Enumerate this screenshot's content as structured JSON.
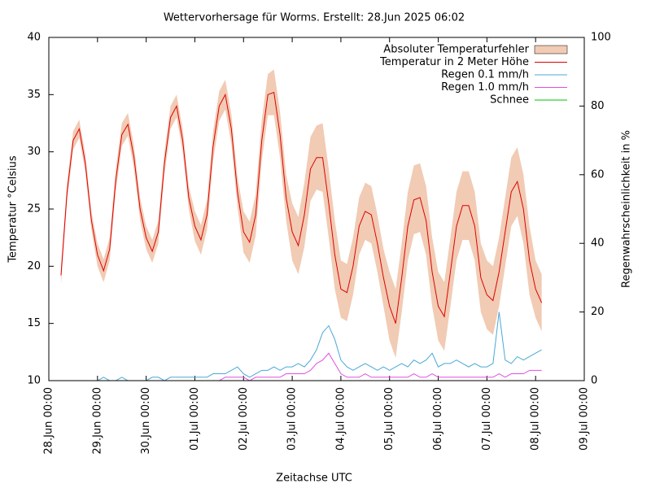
{
  "chart_data": {
    "type": "line",
    "title": "Wettervorhersage für Worms. Erstellt: 28.Jun 2025 06:02",
    "xlabel": "Zeitachse UTC",
    "ylabel": "Temperatur °Celsius",
    "y2label": "Regenwahrscheinlichkeit in %",
    "ylim": [
      10,
      40
    ],
    "yticks": [
      10,
      15,
      20,
      25,
      30,
      35,
      40
    ],
    "y2lim": [
      0,
      100
    ],
    "y2ticks": [
      0,
      20,
      40,
      60,
      80,
      100
    ],
    "xlim": [
      "28.Jun 00:00",
      "09.Jul 00:00"
    ],
    "xticks": [
      "28.Jun 00:00",
      "29.Jun 00:00",
      "30.Jun 00:00",
      "01.Jul 00:00",
      "02.Jul 00:00",
      "03.Jul 00:00",
      "04.Jul 00:00",
      "05.Jul 00:00",
      "06.Jul 00:00",
      "07.Jul 00:00",
      "08.Jul 00:00",
      "09.Jul 00:00"
    ],
    "legend": "top-right",
    "x": [
      "28.Jun 06:00",
      "28.Jun 09:00",
      "28.Jun 12:00",
      "28.Jun 15:00",
      "28.Jun 18:00",
      "28.Jun 21:00",
      "29.Jun 00:00",
      "29.Jun 03:00",
      "29.Jun 06:00",
      "29.Jun 09:00",
      "29.Jun 12:00",
      "29.Jun 15:00",
      "29.Jun 18:00",
      "29.Jun 21:00",
      "30.Jun 00:00",
      "30.Jun 03:00",
      "30.Jun 06:00",
      "30.Jun 09:00",
      "30.Jun 12:00",
      "30.Jun 15:00",
      "30.Jun 18:00",
      "30.Jun 21:00",
      "01.Jul 00:00",
      "01.Jul 03:00",
      "01.Jul 06:00",
      "01.Jul 09:00",
      "01.Jul 12:00",
      "01.Jul 15:00",
      "01.Jul 18:00",
      "01.Jul 21:00",
      "02.Jul 00:00",
      "02.Jul 03:00",
      "02.Jul 06:00",
      "02.Jul 09:00",
      "02.Jul 12:00",
      "02.Jul 15:00",
      "02.Jul 18:00",
      "02.Jul 21:00",
      "03.Jul 00:00",
      "03.Jul 03:00",
      "03.Jul 06:00",
      "03.Jul 09:00",
      "03.Jul 12:00",
      "03.Jul 15:00",
      "03.Jul 18:00",
      "03.Jul 21:00",
      "04.Jul 00:00",
      "04.Jul 03:00",
      "04.Jul 06:00",
      "04.Jul 09:00",
      "04.Jul 12:00",
      "04.Jul 15:00",
      "04.Jul 18:00",
      "04.Jul 21:00",
      "05.Jul 00:00",
      "05.Jul 03:00",
      "05.Jul 06:00",
      "05.Jul 09:00",
      "05.Jul 12:00",
      "05.Jul 15:00",
      "05.Jul 18:00",
      "05.Jul 21:00",
      "06.Jul 00:00",
      "06.Jul 03:00",
      "06.Jul 06:00",
      "06.Jul 09:00",
      "06.Jul 12:00",
      "06.Jul 15:00",
      "06.Jul 18:00",
      "06.Jul 21:00",
      "07.Jul 00:00",
      "07.Jul 03:00",
      "07.Jul 06:00",
      "07.Jul 09:00",
      "07.Jul 12:00",
      "07.Jul 15:00",
      "07.Jul 18:00",
      "07.Jul 21:00",
      "08.Jul 00:00",
      "08.Jul 03:00"
    ],
    "series": [
      {
        "name": "Absoluter Temperaturfehler",
        "color": "#f1cbb4",
        "errors": [
          0.8,
          0.8,
          0.8,
          0.8,
          0.8,
          0.8,
          1,
          1,
          1,
          1,
          1,
          1,
          1,
          1,
          1,
          1,
          1,
          1,
          1,
          1,
          1,
          1,
          1.3,
          1.3,
          1.3,
          1.3,
          1.3,
          1.3,
          1.3,
          1.3,
          1.8,
          1.8,
          1.8,
          1.8,
          1.8,
          2,
          2,
          2,
          2.5,
          2.5,
          2.8,
          2.8,
          2.8,
          3,
          3,
          3,
          2.5,
          2.5,
          2.5,
          2.5,
          2.5,
          2.5,
          2.5,
          2.5,
          3,
          3,
          3,
          3,
          3,
          3,
          3,
          3,
          3,
          3,
          3,
          3,
          3,
          3,
          3,
          3,
          3,
          3,
          3,
          3,
          3,
          3,
          3,
          3,
          2.5,
          2.5
        ]
      },
      {
        "name": "Temperatur in 2 Meter Höhe",
        "color": "#e00000",
        "values": [
          19.2,
          26.5,
          31.0,
          32.0,
          29.0,
          24.0,
          21.0,
          19.6,
          21.5,
          27.5,
          31.5,
          32.4,
          29.5,
          25.0,
          22.5,
          21.3,
          23.0,
          29.0,
          33.0,
          34.0,
          31.0,
          26.0,
          23.5,
          22.3,
          24.5,
          30.5,
          34.0,
          35.0,
          32.0,
          26.5,
          23.0,
          22.1,
          24.5,
          31.0,
          35.0,
          35.2,
          31.5,
          26.0,
          23.0,
          21.8,
          24.5,
          28.5,
          29.5,
          29.5,
          25.5,
          21.0,
          18.0,
          17.7,
          20.0,
          23.5,
          24.8,
          24.5,
          22.0,
          19.0,
          16.5,
          15.0,
          19.0,
          23.5,
          25.8,
          26.0,
          24.0,
          19.5,
          16.5,
          15.6,
          19.5,
          23.5,
          25.3,
          25.3,
          23.5,
          19.0,
          17.5,
          17.0,
          19.5,
          23.0,
          26.5,
          27.4,
          25.0,
          20.5,
          18.0,
          16.8
        ]
      },
      {
        "name": "Regen 0.1 mm/h",
        "color": "#4aa8d8",
        "axis": "y2",
        "values": [
          0,
          0,
          0,
          0,
          0,
          0,
          0,
          1,
          0,
          0,
          1,
          0,
          0,
          0,
          0,
          1,
          1,
          0,
          1,
          1,
          1,
          1,
          1,
          1,
          1,
          2,
          2,
          2,
          3,
          4,
          2,
          1,
          2,
          3,
          3,
          4,
          3,
          4,
          4,
          5,
          4,
          6,
          9,
          14,
          16,
          12,
          6,
          4,
          3,
          4,
          5,
          4,
          3,
          4,
          3,
          4,
          5,
          4,
          6,
          5,
          6,
          8,
          4,
          5,
          5,
          6,
          5,
          4,
          5,
          4,
          4,
          5,
          20,
          6,
          5,
          7,
          6,
          7,
          8,
          9
        ]
      },
      {
        "name": "Regen 1.0 mm/h",
        "color": "#e050e0",
        "axis": "y2",
        "values": [
          0,
          0,
          0,
          0,
          0,
          0,
          0,
          0,
          0,
          0,
          0,
          0,
          0,
          0,
          0,
          0,
          0,
          0,
          0,
          0,
          0,
          0,
          0,
          0,
          0,
          0,
          0,
          1,
          1,
          1,
          1,
          0,
          1,
          1,
          1,
          1,
          1,
          2,
          2,
          2,
          2,
          3,
          5,
          6,
          8,
          5,
          2,
          1,
          1,
          1,
          2,
          1,
          1,
          1,
          1,
          1,
          1,
          1,
          2,
          1,
          1,
          2,
          1,
          1,
          1,
          1,
          1,
          1,
          1,
          1,
          1,
          1,
          2,
          1,
          2,
          2,
          2,
          3,
          3,
          3
        ]
      },
      {
        "name": "Schnee",
        "color": "#00c000",
        "axis": "y2",
        "values": [
          0,
          0,
          0,
          0,
          0,
          0,
          0,
          0,
          0,
          0,
          0,
          0,
          0,
          0,
          0,
          0,
          0,
          0,
          0,
          0,
          0,
          0,
          0,
          0,
          0,
          0,
          0,
          0,
          0,
          0,
          0,
          0,
          0,
          0,
          0,
          0,
          0,
          0,
          0,
          0,
          0,
          0,
          0,
          0,
          0,
          0,
          0,
          0,
          0,
          0,
          0,
          0,
          0,
          0,
          0,
          0,
          0,
          0,
          0,
          0,
          0,
          0,
          0,
          0,
          0,
          0,
          0,
          0,
          0,
          0,
          0,
          0,
          0,
          0,
          0,
          0,
          0,
          0,
          0,
          0
        ]
      }
    ]
  }
}
